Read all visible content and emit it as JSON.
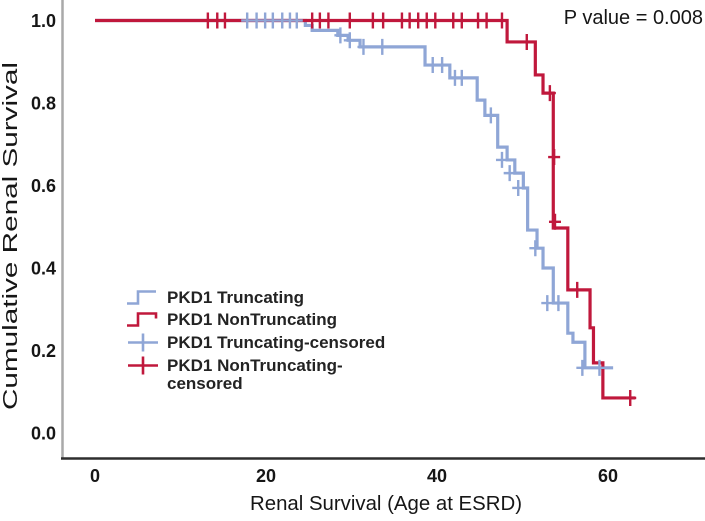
{
  "annotation": {
    "p_value_label": "P value = 0.008"
  },
  "axes": {
    "y_title": "Cumulative Renal Survival",
    "x_title": "Renal Survival (Age at ESRD)",
    "y_ticks": [
      {
        "v": 1.0,
        "label": "1.0"
      },
      {
        "v": 0.8,
        "label": "0.8"
      },
      {
        "v": 0.6,
        "label": "0.6"
      },
      {
        "v": 0.4,
        "label": "0.4"
      },
      {
        "v": 0.2,
        "label": "0.2"
      },
      {
        "v": 0.0,
        "label": "0.0"
      }
    ],
    "x_ticks": [
      {
        "v": 0,
        "label": "0"
      },
      {
        "v": 20,
        "label": "20"
      },
      {
        "v": 40,
        "label": "40"
      },
      {
        "v": 60,
        "label": "60"
      }
    ]
  },
  "colors": {
    "truncating": "#8fa6d6",
    "nontruncating": "#c0183c",
    "axis_left": "#a9a9a9",
    "axis_bottom": "#2e2e2e",
    "text": "#161616"
  },
  "legend": {
    "items": [
      {
        "id": "pkd1-truncating",
        "symbol": "step",
        "tail": false,
        "color_key": "truncating",
        "lines": [
          "PKD1 Truncating"
        ]
      },
      {
        "id": "pkd1-nontruncating",
        "symbol": "step",
        "tail": true,
        "color_key": "nontruncating",
        "lines": [
          "PKD1 NonTruncating"
        ]
      },
      {
        "id": "pkd1-truncating-censored",
        "symbol": "plus",
        "tail": false,
        "color_key": "truncating",
        "lines": [
          "PKD1 Truncating-censored"
        ]
      },
      {
        "id": "pkd1-nontruncating-censored",
        "symbol": "plus",
        "tail": false,
        "color_key": "nontruncating",
        "lines": [
          "PKD1 NonTruncating-",
          "censored"
        ]
      }
    ]
  },
  "chart_data": {
    "type": "line",
    "subtype": "kaplan-meier-step",
    "title": "",
    "xlabel": "Renal Survival (Age at ESRD)",
    "ylabel": "Cumulative Renal Survival",
    "xlim": [
      0,
      71
    ],
    "ylim": [
      0.0,
      1.05
    ],
    "x_tick_values": [
      0,
      20,
      40,
      60
    ],
    "y_tick_values": [
      1.0,
      0.8,
      0.6,
      0.4,
      0.2,
      0.0
    ],
    "grid": false,
    "legend_position": "inside-lower-left",
    "p_value": "0.008",
    "series": [
      {
        "name": "PKD1 Truncating",
        "color_key": "truncating",
        "start": {
          "x": 0,
          "s": 1.0
        },
        "steps": [
          [
            24.6,
            0.988
          ],
          [
            25.4,
            0.976
          ],
          [
            28.4,
            0.964
          ],
          [
            29.6,
            0.952
          ],
          [
            31.0,
            0.936
          ],
          [
            38.6,
            0.892
          ],
          [
            41.5,
            0.861
          ],
          [
            44.7,
            0.807
          ],
          [
            45.6,
            0.77
          ],
          [
            47.1,
            0.693
          ],
          [
            48.2,
            0.662
          ],
          [
            49.1,
            0.63
          ],
          [
            50.1,
            0.594
          ],
          [
            50.6,
            0.492
          ],
          [
            51.7,
            0.448
          ],
          [
            52.4,
            0.4
          ],
          [
            53.6,
            0.315
          ],
          [
            55.3,
            0.242
          ],
          [
            55.9,
            0.22
          ],
          [
            57.3,
            0.158
          ]
        ],
        "end_x": 60.6,
        "censored": [
          [
            17.8,
            1.0
          ],
          [
            18.9,
            1.0
          ],
          [
            19.9,
            1.0
          ],
          [
            20.8,
            1.0
          ],
          [
            21.9,
            1.0
          ],
          [
            22.8,
            1.0
          ],
          [
            23.6,
            1.0
          ],
          [
            28.7,
            0.964
          ],
          [
            29.8,
            0.952
          ],
          [
            31.4,
            0.936
          ],
          [
            33.6,
            0.936
          ],
          [
            39.5,
            0.892
          ],
          [
            40.6,
            0.892
          ],
          [
            42.1,
            0.861
          ],
          [
            42.9,
            0.861
          ],
          [
            46.3,
            0.77
          ],
          [
            47.6,
            0.662
          ],
          [
            48.5,
            0.63
          ],
          [
            49.5,
            0.594
          ],
          [
            51.5,
            0.448
          ],
          [
            52.9,
            0.315
          ],
          [
            54.2,
            0.315
          ],
          [
            57.0,
            0.158
          ],
          [
            59.0,
            0.158
          ]
        ]
      },
      {
        "name": "PKD1 NonTruncating",
        "color_key": "nontruncating",
        "start": {
          "x": 0,
          "s": 1.0
        },
        "steps": [
          [
            48.2,
            0.948
          ],
          [
            51.5,
            0.868
          ],
          [
            52.4,
            0.824
          ],
          [
            53.6,
            0.497
          ],
          [
            55.3,
            0.347
          ],
          [
            57.9,
            0.255
          ],
          [
            58.3,
            0.17
          ],
          [
            59.4,
            0.085
          ]
        ],
        "end_x": 63.2,
        "censored": [
          [
            13.2,
            1.0
          ],
          [
            14.3,
            1.0
          ],
          [
            15.2,
            1.0
          ],
          [
            25.4,
            1.0
          ],
          [
            26.3,
            1.0
          ],
          [
            27.3,
            1.0
          ],
          [
            29.8,
            1.0
          ],
          [
            32.5,
            1.0
          ],
          [
            33.7,
            1.0
          ],
          [
            35.9,
            1.0
          ],
          [
            36.8,
            1.0
          ],
          [
            37.8,
            1.0
          ],
          [
            38.8,
            1.0
          ],
          [
            39.8,
            1.0
          ],
          [
            41.9,
            1.0
          ],
          [
            42.9,
            1.0
          ],
          [
            44.8,
            1.0
          ],
          [
            45.8,
            1.0
          ],
          [
            47.6,
            1.0
          ],
          [
            50.5,
            0.948
          ],
          [
            53.2,
            0.824
          ],
          [
            53.7,
            0.669
          ],
          [
            53.8,
            0.512
          ],
          [
            56.4,
            0.347
          ],
          [
            62.6,
            0.085
          ]
        ]
      }
    ]
  },
  "plot_geometry_note": "x axis in years of age, y axis cumulative survival proportion"
}
